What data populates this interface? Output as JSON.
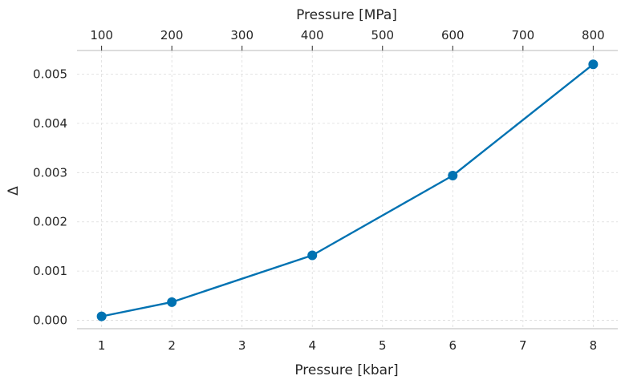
{
  "chart_data": {
    "type": "line",
    "title": "",
    "xlabel": "Pressure [kbar]",
    "ylabel": "Δ",
    "top_xlabel": "Pressure [MPa]",
    "xlim": [
      0.65,
      8.35
    ],
    "ylim": [
      -0.00017,
      0.00548
    ],
    "x_ticks": [
      1,
      2,
      3,
      4,
      5,
      6,
      7,
      8
    ],
    "x_tick_labels": [
      "1",
      "2",
      "3",
      "4",
      "5",
      "6",
      "7",
      "8"
    ],
    "top_x_ticks": [
      1,
      2,
      3,
      4,
      5,
      6,
      7,
      8
    ],
    "top_x_tick_labels": [
      "100",
      "200",
      "300",
      "400",
      "500",
      "600",
      "700",
      "800"
    ],
    "y_ticks": [
      0,
      0.001,
      0.002,
      0.003,
      0.004,
      0.005
    ],
    "y_tick_labels": [
      "0.000",
      "0.001",
      "0.002",
      "0.003",
      "0.004",
      "0.005"
    ],
    "grid": true,
    "series": [
      {
        "name": "Δ",
        "color": "#0072b2",
        "x": [
          1,
          2,
          4,
          6,
          8
        ],
        "values": [
          8e-05,
          0.00037,
          0.00132,
          0.00294,
          0.0052
        ]
      }
    ]
  }
}
